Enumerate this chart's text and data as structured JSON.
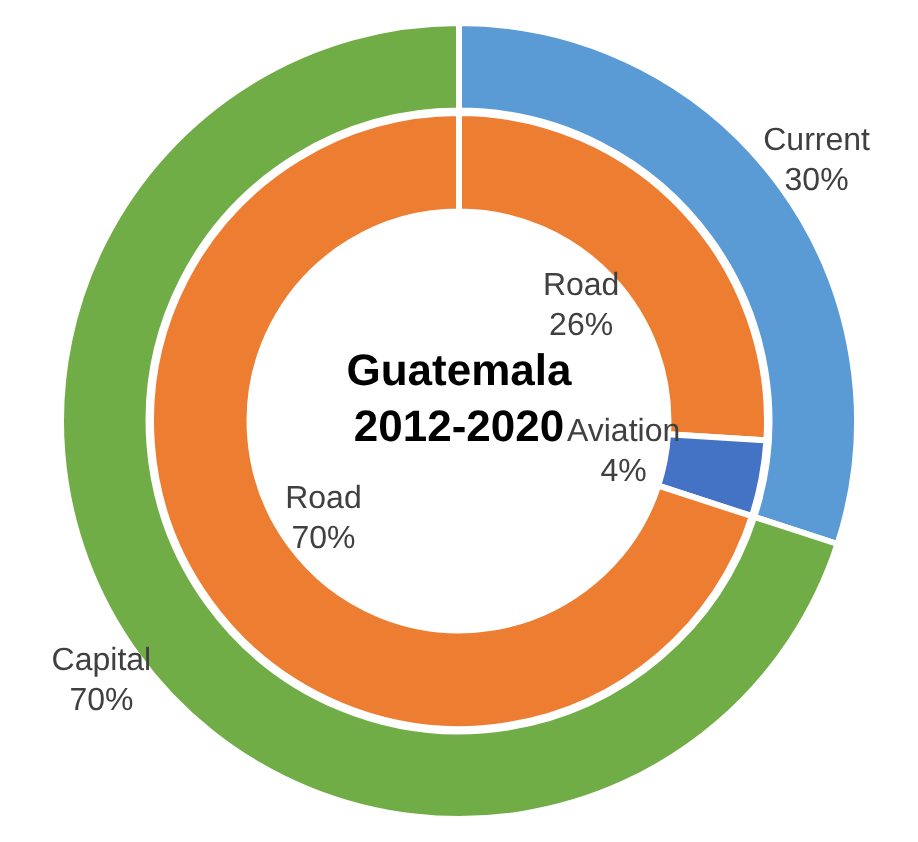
{
  "chart_data": [
    {
      "type": "donut",
      "legend": false,
      "categories": [
        "Current",
        "Capital"
      ],
      "values": [
        30,
        70
      ],
      "colors": [
        "#5b9bd5",
        "#70ad47"
      ],
      "value_labels": [
        "30%",
        "70%"
      ]
    },
    {
      "type": "donut",
      "title": "Guatemala 2012-2020",
      "legend": false,
      "categories": [
        "Road",
        "Aviation",
        "Road"
      ],
      "values": [
        26,
        4,
        70
      ],
      "colors": [
        "#ed7d31",
        "#4472c4",
        "#ed7d31"
      ],
      "value_labels": [
        "26%",
        "4%",
        "70%"
      ]
    }
  ]
}
